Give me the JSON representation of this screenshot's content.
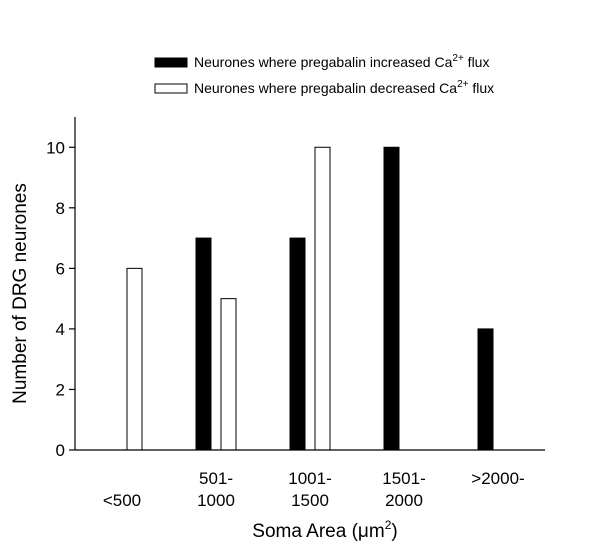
{
  "chart_data": {
    "type": "bar",
    "categories": [
      [
        "",
        "<500"
      ],
      [
        "501-",
        "1000"
      ],
      [
        "1001-",
        "1500"
      ],
      [
        "1501-",
        "2000"
      ],
      [
        ">2000-",
        ""
      ]
    ],
    "series": [
      {
        "name": "Neurones where pregabalin increased Ca",
        "name_sup": "2+",
        "name_suffix": " flux",
        "fill": "#000000",
        "values": [
          0,
          7,
          7,
          10,
          4
        ]
      },
      {
        "name": "Neurones where pregabalin decreased Ca",
        "name_sup": "2+",
        "name_suffix": " flux",
        "fill": "#ffffff",
        "values": [
          6,
          5,
          10,
          0,
          0
        ]
      }
    ],
    "xlabel": "Soma Area (",
    "xlabel_unit": "μm",
    "xlabel_sup": "2",
    "xlabel_end": ")",
    "ylabel": "Number of DRG neurones",
    "ylim": [
      0,
      11
    ],
    "yticks": [
      0,
      2,
      4,
      6,
      8,
      10
    ],
    "grid": false,
    "legend": "top"
  }
}
